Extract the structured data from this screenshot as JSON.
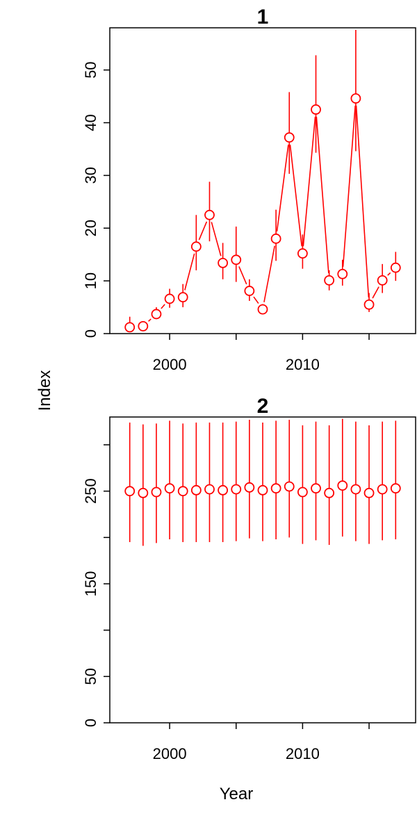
{
  "chart_data": [
    {
      "type": "line",
      "title": "1",
      "xlabel": "",
      "ylabel": "Index",
      "xlim": [
        1995.5,
        2018.5
      ],
      "ylim": [
        0,
        58
      ],
      "x_ticks": [
        2000,
        2005,
        2010,
        2015
      ],
      "x_tick_labels": [
        "2000",
        "2010"
      ],
      "x_tick_labels_at": [
        2000,
        2010
      ],
      "y_ticks": [
        0,
        10,
        20,
        30,
        40,
        50
      ],
      "y_tick_labels": [
        "0",
        "10",
        "20",
        "30",
        "40",
        "50"
      ],
      "color": "#ff0000",
      "marker": "open-circle",
      "error_bars": true,
      "grid": false,
      "series": [
        {
          "x": [
            1997,
            1998,
            1999,
            2000,
            2001,
            2002,
            2003,
            2004,
            2005,
            2006,
            2007,
            2008,
            2009,
            2010,
            2011,
            2012,
            2013,
            2014,
            2015,
            2016,
            2017
          ],
          "y": [
            1.2,
            1.4,
            3.7,
            6.6,
            6.9,
            16.5,
            22.5,
            13.4,
            14.0,
            8.1,
            4.6,
            18.0,
            37.2,
            15.2,
            42.5,
            10.1,
            11.3,
            44.6,
            5.5,
            10.1,
            12.5
          ],
          "y_low": [
            0.3,
            0.6,
            2.8,
            4.9,
            5.0,
            12.0,
            17.5,
            10.3,
            9.8,
            6.2,
            3.8,
            13.8,
            30.3,
            12.3,
            34.3,
            8.2,
            9.1,
            34.6,
            4.1,
            7.7,
            10.0
          ],
          "y_high": [
            3.2,
            2.1,
            5.0,
            8.5,
            9.4,
            22.5,
            28.8,
            17.2,
            20.3,
            10.3,
            5.6,
            23.5,
            45.8,
            18.8,
            52.8,
            12.0,
            14.0,
            57.6,
            7.7,
            13.2,
            15.5
          ]
        }
      ]
    },
    {
      "type": "scatter",
      "title": "2",
      "xlabel": "Year",
      "ylabel": "",
      "xlim": [
        1995.5,
        2018.5
      ],
      "ylim": [
        0,
        330
      ],
      "x_ticks": [
        2000,
        2005,
        2010,
        2015
      ],
      "x_tick_labels": [
        "2000",
        "2010"
      ],
      "x_tick_labels_at": [
        2000,
        2010
      ],
      "y_ticks": [
        0,
        50,
        100,
        150,
        200,
        250,
        300
      ],
      "y_tick_labels": [
        "0",
        "50",
        "150",
        "250"
      ],
      "y_tick_labels_at": [
        0,
        50,
        150,
        250
      ],
      "color": "#ff0000",
      "marker": "open-circle",
      "error_bars": true,
      "grid": false,
      "series": [
        {
          "x": [
            1997,
            1998,
            1999,
            2000,
            2001,
            2002,
            2003,
            2004,
            2005,
            2006,
            2007,
            2008,
            2009,
            2010,
            2011,
            2012,
            2013,
            2014,
            2015,
            2016,
            2017
          ],
          "y": [
            250,
            248,
            249,
            253,
            250,
            251,
            252,
            251,
            252,
            254,
            251,
            253,
            255,
            249,
            253,
            248,
            256,
            252,
            248,
            252,
            253
          ],
          "y_low": [
            195,
            191,
            194,
            198,
            195,
            195,
            195,
            195,
            196,
            199,
            196,
            198,
            200,
            193,
            197,
            192,
            201,
            196,
            193,
            197,
            198
          ],
          "y_high": [
            324,
            322,
            323,
            326,
            323,
            324,
            324,
            324,
            325,
            327,
            324,
            326,
            327,
            321,
            325,
            321,
            328,
            325,
            321,
            325,
            326
          ]
        }
      ]
    }
  ]
}
